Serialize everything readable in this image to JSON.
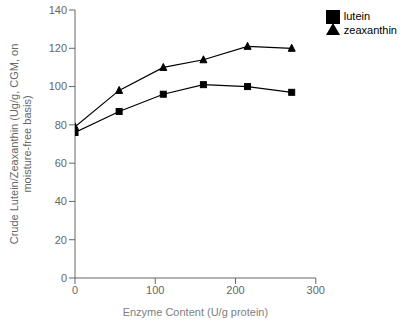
{
  "chart_data": {
    "type": "line",
    "xlabel": "Enzyme Content (U/g protein)",
    "ylabel": "Crude Lutein/Zeaxanthin (Ug/g, CGM, on\nmoisture-free basis)",
    "x": [
      0,
      55,
      110,
      160,
      215,
      270
    ],
    "series": [
      {
        "name": "lutein",
        "color": "black",
        "marker": "square",
        "values": [
          76,
          87,
          96,
          101,
          100,
          97
        ]
      },
      {
        "name": "zeaxanthin",
        "color": "black",
        "marker": "triangle",
        "values": [
          79,
          98,
          110,
          114,
          121,
          120
        ]
      }
    ],
    "xlim": [
      0,
      300
    ],
    "ylim": [
      0,
      140
    ],
    "xticks": [
      0,
      100,
      200,
      300
    ],
    "yticks": [
      0,
      20,
      40,
      60,
      80,
      100,
      120,
      140
    ],
    "grid": false,
    "legend": "right"
  }
}
